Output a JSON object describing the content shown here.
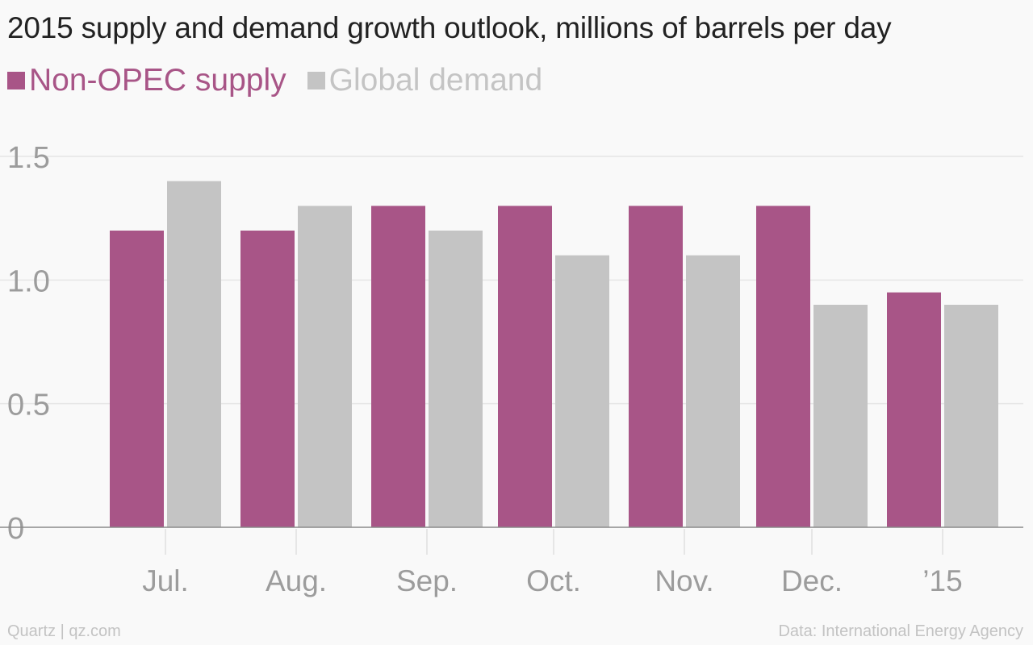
{
  "title": "2015 supply and demand growth outlook, millions of barrels per day",
  "footer": {
    "source_left": "Quartz | qz.com",
    "source_right": "Data: International Energy Agency"
  },
  "colors": {
    "supply": "#a85587",
    "demand": "#c4c4c4",
    "text": "#222222",
    "axis_text": "#9c9c9c",
    "grid": "#e6e6e6"
  },
  "chart_data": {
    "type": "bar",
    "title": "2015 supply and demand growth outlook, millions of barrels per day",
    "xlabel": "",
    "ylabel": "",
    "categories": [
      "Jul.",
      "Aug.",
      "Sep.",
      "Oct.",
      "Nov.",
      "Dec.",
      "’15"
    ],
    "series": [
      {
        "name": "Non-OPEC supply",
        "color": "#a85587",
        "values": [
          1.2,
          1.2,
          1.3,
          1.3,
          1.3,
          1.3,
          0.95
        ]
      },
      {
        "name": "Global demand",
        "color": "#c4c4c4",
        "values": [
          1.4,
          1.3,
          1.2,
          1.1,
          1.1,
          0.9,
          0.9
        ]
      }
    ],
    "yticks": [
      {
        "value": 0,
        "label": "0"
      },
      {
        "value": 0.5,
        "label": "0.5"
      },
      {
        "value": 1.0,
        "label": "1.0"
      },
      {
        "value": 1.5,
        "label": "1.5"
      }
    ],
    "ylim": [
      0,
      1.5
    ],
    "grid": true,
    "legend_position": "top-left"
  }
}
